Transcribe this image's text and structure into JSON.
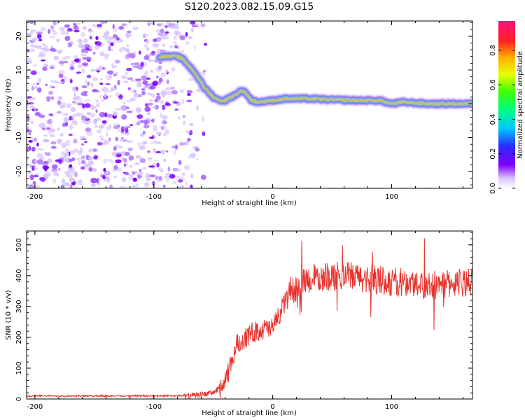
{
  "title": "S120.2023.082.15.09.G15",
  "colors": {
    "line": "#e8322d",
    "axis": "#000000"
  },
  "chart_data": [
    {
      "type": "heatmap",
      "xlabel": "Height of straight line (km)",
      "ylabel": "Frequency (Hz)",
      "xlim": [
        -207,
        168
      ],
      "ylim": [
        -25,
        24.5
      ],
      "xticks": [
        -200,
        -100,
        0,
        100
      ],
      "yticks": [
        -20,
        -10,
        0,
        10,
        20
      ],
      "colorbar": {
        "label": "Normalized spectral amplitude",
        "range": [
          0,
          0.97
        ],
        "ticks": [
          0.0,
          0.2,
          0.4,
          0.6,
          0.8
        ]
      },
      "ridge": {
        "x": [
          -95,
          -80,
          -75,
          -65,
          -58,
          -50,
          -45,
          -40,
          -35,
          -30,
          -26,
          -22,
          -18,
          -12,
          -5,
          0,
          10,
          30,
          50,
          70,
          90,
          100,
          110,
          130,
          150,
          168
        ],
        "y": [
          14,
          14,
          13,
          9,
          5,
          2,
          1,
          1,
          2,
          3,
          4,
          3,
          1,
          0.5,
          0.8,
          1,
          1.5,
          1.5,
          1.2,
          1,
          1,
          0,
          0.5,
          0,
          0,
          0
        ]
      },
      "noise_region_x": [
        -207,
        -55
      ]
    },
    {
      "type": "line",
      "xlabel": "Height of straight line (km)",
      "ylabel": "SNR (10 * v/v)",
      "xlim": [
        -207,
        168
      ],
      "ylim": [
        0,
        545
      ],
      "xticks": [
        -200,
        -100,
        0,
        100
      ],
      "yticks": [
        0,
        100,
        200,
        300,
        400,
        500
      ],
      "series": [
        {
          "trend_x": [
            -207,
            -70,
            -50,
            -40,
            -30,
            -15,
            0,
            15,
            30,
            60,
            100,
            140,
            168
          ],
          "trend_y": [
            10,
            10,
            20,
            50,
            180,
            220,
            230,
            350,
            390,
            400,
            380,
            370,
            380
          ]
        }
      ]
    }
  ]
}
